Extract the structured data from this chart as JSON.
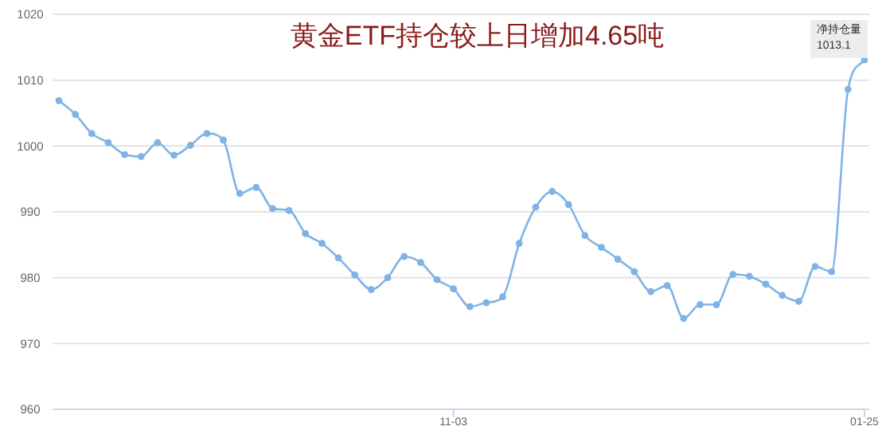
{
  "chart_data": {
    "type": "line",
    "title": "黄金ETF持仓较上日增加4.65吨",
    "categories": [
      null,
      null,
      null,
      null,
      null,
      null,
      null,
      null,
      null,
      null,
      null,
      null,
      null,
      null,
      null,
      null,
      null,
      null,
      null,
      null,
      null,
      null,
      null,
      null,
      "11-03",
      null,
      null,
      null,
      null,
      null,
      null,
      null,
      null,
      null,
      null,
      null,
      null,
      null,
      null,
      null,
      null,
      null,
      null,
      null,
      null,
      null,
      null,
      null,
      null,
      "01-25"
    ],
    "series": [
      {
        "color": "#7fb3e5",
        "values": [
          1006.9,
          1004.8,
          1001.9,
          1000.5,
          998.7,
          998.4,
          1000.5,
          998.6,
          1000.1,
          1001.9,
          1000.9,
          992.8,
          993.7,
          990.5,
          990.2,
          986.7,
          985.2,
          983.0,
          980.4,
          978.2,
          980.0,
          983.2,
          982.3,
          979.7,
          978.3,
          975.6,
          976.2,
          977.1,
          985.2,
          990.7,
          993.1,
          991.1,
          986.4,
          984.6,
          982.8,
          980.9,
          977.9,
          978.8,
          973.8,
          975.9,
          975.9,
          980.5,
          980.2,
          979.0,
          977.3,
          976.4,
          981.7,
          980.9,
          1008.6,
          1013.1
        ],
        "value_labels": [
          null,
          null,
          null,
          null,
          null,
          null,
          null,
          null,
          null,
          null,
          null,
          null,
          null,
          null,
          null,
          null,
          null,
          null,
          null,
          null,
          null,
          null,
          null,
          null,
          null,
          null,
          null,
          null,
          null,
          null,
          null,
          null,
          null,
          null,
          null,
          null,
          null,
          null,
          null,
          null,
          null,
          null,
          null,
          null,
          null,
          null,
          null,
          null,
          null,
          "1013.1"
        ]
      }
    ],
    "annotations": [
      "净持仓量"
    ],
    "ylim": [
      960,
      1020
    ],
    "yticks": [
      960,
      970,
      980,
      990,
      1000,
      1010,
      1020
    ],
    "grid": "y",
    "marker": "circle",
    "line_style": "solid"
  }
}
